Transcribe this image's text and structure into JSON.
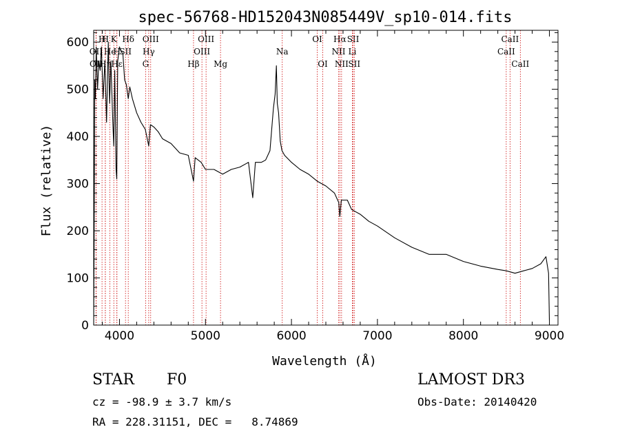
{
  "chart_data": {
    "type": "line",
    "title": "spec-56768-HD152043N085449V_sp10-014.fits",
    "xlabel": "Wavelength (Å)",
    "ylabel": "Flux (relative)",
    "xlim": [
      3700,
      9100
    ],
    "ylim": [
      0,
      625
    ],
    "x_ticks": [
      4000,
      5000,
      6000,
      7000,
      8000,
      9000
    ],
    "x_tick_labels": [
      "4000",
      "5000",
      "6000",
      "7000",
      "8000",
      "9000"
    ],
    "y_ticks": [
      0,
      100,
      200,
      300,
      400,
      500,
      600
    ],
    "y_tick_labels": [
      "0",
      "100",
      "200",
      "300",
      "400",
      "500",
      "600"
    ],
    "grid": false,
    "series": [
      {
        "name": "spectrum",
        "x": [
          3700,
          3705,
          3712,
          3720,
          3730,
          3745,
          3760,
          3775,
          3790,
          3810,
          3830,
          3850,
          3870,
          3885,
          3900,
          3920,
          3933,
          3945,
          3960,
          3968,
          3980,
          4000,
          4020,
          4040,
          4060,
          4080,
          4102,
          4120,
          4150,
          4200,
          4250,
          4300,
          4340,
          4360,
          4400,
          4450,
          4500,
          4600,
          4700,
          4800,
          4861,
          4880,
          4950,
          5000,
          5100,
          5200,
          5300,
          5400,
          5500,
          5550,
          5580,
          5650,
          5700,
          5750,
          5790,
          5810,
          5825,
          5835,
          5850,
          5870,
          5890,
          5920,
          6000,
          6100,
          6200,
          6300,
          6400,
          6500,
          6550,
          6563,
          6580,
          6650,
          6700,
          6800,
          6900,
          7000,
          7200,
          7400,
          7600,
          7800,
          8000,
          8200,
          8400,
          8500,
          8600,
          8700,
          8800,
          8900,
          8960,
          8990,
          9000
        ],
        "values": [
          0,
          160,
          520,
          480,
          590,
          500,
          560,
          540,
          590,
          480,
          560,
          430,
          600,
          470,
          560,
          440,
          380,
          540,
          330,
          310,
          560,
          590,
          580,
          575,
          520,
          510,
          480,
          505,
          480,
          450,
          430,
          415,
          380,
          425,
          420,
          410,
          395,
          385,
          365,
          360,
          305,
          355,
          345,
          330,
          330,
          320,
          330,
          335,
          345,
          270,
          345,
          345,
          350,
          370,
          460,
          490,
          550,
          470,
          450,
          390,
          370,
          360,
          345,
          330,
          320,
          305,
          295,
          280,
          260,
          230,
          265,
          265,
          245,
          235,
          220,
          210,
          185,
          165,
          150,
          150,
          135,
          125,
          118,
          115,
          110,
          115,
          120,
          130,
          145,
          110,
          10
        ]
      }
    ],
    "line_markers": [
      {
        "label": "H",
        "x": 3797,
        "row": 0
      },
      {
        "label": "H",
        "x": 3835,
        "row": 0
      },
      {
        "label": "K",
        "x": 3934,
        "row": 0
      },
      {
        "label": "Hδ",
        "x": 4102,
        "row": 0
      },
      {
        "label": "OIII",
        "x": 4363,
        "row": 0
      },
      {
        "label": "OIII",
        "x": 5007,
        "row": 0
      },
      {
        "label": "OI",
        "x": 6300,
        "row": 0
      },
      {
        "label": "Hα",
        "x": 6563,
        "row": 0
      },
      {
        "label": "SII",
        "x": 6717,
        "row": 0
      },
      {
        "label": "CaII",
        "x": 8542,
        "row": 0
      },
      {
        "label": "OII",
        "x": 3727,
        "row": 1
      },
      {
        "label": "He",
        "x": 3889,
        "row": 1
      },
      {
        "label": "H",
        "x": 3970,
        "row": 1
      },
      {
        "label": "SII",
        "x": 4070,
        "row": 1
      },
      {
        "label": "Hγ",
        "x": 4340,
        "row": 1
      },
      {
        "label": "OIII",
        "x": 4959,
        "row": 1
      },
      {
        "label": "Na",
        "x": 5893,
        "row": 1
      },
      {
        "label": "NII",
        "x": 6548,
        "row": 1
      },
      {
        "label": "Li",
        "x": 6708,
        "row": 1
      },
      {
        "label": "CaII",
        "x": 8498,
        "row": 1
      },
      {
        "label": "OII",
        "x": 3729,
        "row": 2
      },
      {
        "label": "Hη",
        "x": 3835,
        "row": 2
      },
      {
        "label": "Hε",
        "x": 3970,
        "row": 2
      },
      {
        "label": "G",
        "x": 4304,
        "row": 2
      },
      {
        "label": "Hβ",
        "x": 4861,
        "row": 2
      },
      {
        "label": "Mg",
        "x": 5175,
        "row": 2
      },
      {
        "label": "OI",
        "x": 6364,
        "row": 2
      },
      {
        "label": "NII",
        "x": 6583,
        "row": 2
      },
      {
        "label": "SII",
        "x": 6731,
        "row": 2
      },
      {
        "label": "CaII",
        "x": 8662,
        "row": 2
      }
    ]
  },
  "info": {
    "object_class": "STAR",
    "subclass": "F0",
    "survey": "LAMOST DR3",
    "redshift": "cz = -98.9 ± 3.7 km/s",
    "obs_date": "Obs-Date: 20140420",
    "coords": "RA = 228.31151, DEC =   8.74869"
  }
}
